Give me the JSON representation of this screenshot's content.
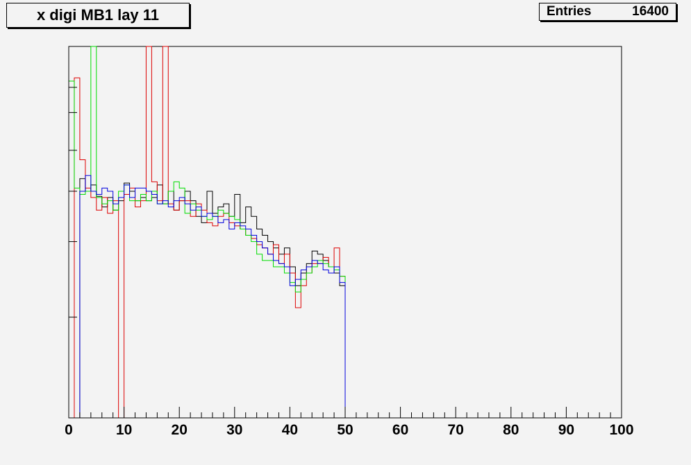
{
  "title": "x digi MB1 lay 11",
  "stats": {
    "label": "Entries",
    "value": "16400"
  },
  "colors": {
    "background": "#f3f3f3",
    "axes": "#000000",
    "black": "#000000",
    "red": "#dd0000",
    "green": "#00dd00",
    "blue": "#0000dd"
  },
  "chart_data": {
    "type": "histogram",
    "title": "x digi MB1 lay 11",
    "xlabel": "",
    "ylabel": "",
    "xlim": [
      0,
      100
    ],
    "ylim": [
      0,
      590
    ],
    "x_ticks": [
      0,
      10,
      20,
      30,
      40,
      50,
      60,
      70,
      80,
      90,
      100
    ],
    "y_tick_values": [
      160,
      280,
      360,
      425,
      485,
      525
    ],
    "bin_width": 1,
    "entries": 16400,
    "series": [
      {
        "color": "black",
        "values": [
          0,
          0,
          380,
          360,
          370,
          352,
          335,
          350,
          330,
          345,
          373,
          360,
          345,
          350,
          345,
          350,
          370,
          340,
          360,
          330,
          345,
          360,
          345,
          320,
          310,
          360,
          325,
          335,
          340,
          320,
          355,
          310,
          335,
          320,
          300,
          290,
          280,
          270,
          260,
          270,
          240,
          210,
          230,
          245,
          265,
          260,
          250,
          240,
          230,
          210
        ]
      },
      {
        "color": "red",
        "values": [
          0,
          540,
          410,
          365,
          350,
          330,
          350,
          325,
          345,
          0,
          355,
          365,
          335,
          345,
          590,
          375,
          345,
          590,
          340,
          330,
          345,
          345,
          320,
          340,
          330,
          310,
          305,
          320,
          325,
          310,
          305,
          300,
          290,
          285,
          275,
          270,
          260,
          275,
          245,
          260,
          230,
          175,
          210,
          230,
          245,
          245,
          255,
          240,
          270,
          225
        ]
      },
      {
        "color": "green",
        "values": [
          535,
          365,
          355,
          360,
          590,
          350,
          340,
          345,
          330,
          360,
          370,
          345,
          345,
          355,
          345,
          360,
          340,
          340,
          360,
          375,
          365,
          325,
          340,
          330,
          320,
          315,
          320,
          330,
          325,
          320,
          315,
          300,
          290,
          280,
          260,
          250,
          250,
          240,
          240,
          230,
          215,
          200,
          220,
          230,
          240,
          250,
          245,
          240,
          235,
          225
        ]
      },
      {
        "color": "blue",
        "values": [
          0,
          0,
          360,
          385,
          360,
          355,
          365,
          360,
          340,
          350,
          370,
          350,
          365,
          365,
          360,
          355,
          340,
          345,
          335,
          345,
          350,
          340,
          330,
          335,
          320,
          325,
          320,
          310,
          315,
          300,
          310,
          305,
          300,
          290,
          280,
          270,
          260,
          250,
          245,
          240,
          210,
          220,
          235,
          240,
          250,
          245,
          235,
          230,
          240,
          215
        ]
      }
    ]
  }
}
